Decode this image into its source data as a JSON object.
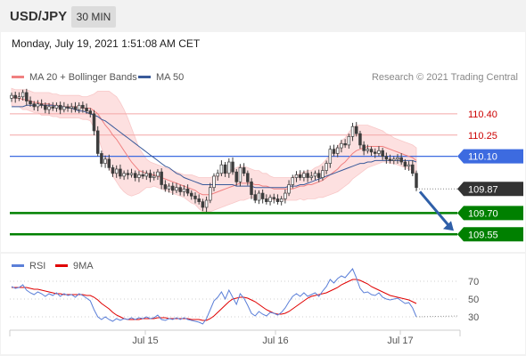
{
  "header": {
    "symbol": "USD/JPY",
    "interval": "30 MIN"
  },
  "timestamp": "Monday, July 19, 2021 1:51:08 AM CET",
  "legend": {
    "ma20": "MA 20 + Bollinger Bands",
    "ma50": "MA 50",
    "rsi": "RSI",
    "rsi_ma": "9MA"
  },
  "copyright": "Research © 2021 Trading Central",
  "colors": {
    "up": "#3d3d3d",
    "down": "#3d3d3d",
    "ma20": "#f08080",
    "ma50": "#3a5a9a",
    "band": "#fde0e0",
    "resistance": "#f4a6a6",
    "pivot": "#3d6be0",
    "support": "#008000",
    "last": "#333333",
    "arrow": "#2f5fa8",
    "rsi": "#5b7fd8",
    "rsi_ma": "#e00000"
  },
  "chart_data": [
    {
      "type": "candlestick",
      "ylim": [
        109.47,
        110.6
      ],
      "x_ticks": [
        "Jul 15",
        "Jul 16",
        "Jul 17"
      ],
      "levels": [
        {
          "label": "110.40",
          "value": 110.4,
          "kind": "resistance"
        },
        {
          "label": "110.25",
          "value": 110.25,
          "kind": "resistance"
        },
        {
          "label": "110.10",
          "value": 110.1,
          "kind": "pivot"
        },
        {
          "label": "109.87",
          "value": 109.87,
          "kind": "last"
        },
        {
          "label": "109.70",
          "value": 109.7,
          "kind": "support"
        },
        {
          "label": "109.55",
          "value": 109.55,
          "kind": "support"
        }
      ],
      "closes": [
        110.53,
        110.51,
        110.52,
        110.55,
        110.49,
        110.47,
        110.45,
        110.47,
        110.46,
        110.43,
        110.45,
        110.44,
        110.46,
        110.43,
        110.45,
        110.44,
        110.45,
        110.43,
        110.46,
        110.44,
        110.42,
        110.4,
        110.28,
        110.12,
        110.05,
        110.08,
        110.02,
        109.98,
        110.01,
        109.96,
        109.98,
        109.97,
        109.98,
        109.95,
        109.97,
        109.96,
        109.98,
        109.95,
        109.96,
        109.99,
        109.9,
        109.87,
        109.89,
        109.86,
        109.88,
        109.85,
        109.87,
        109.84,
        109.82,
        109.8,
        109.78,
        109.74,
        109.79,
        109.88,
        109.96,
        109.98,
        110.04,
        109.98,
        110.06,
        109.99,
        109.92,
        110.02,
        109.98,
        109.92,
        109.83,
        109.79,
        109.84,
        109.8,
        109.78,
        109.81,
        109.8,
        109.78,
        109.8,
        109.84,
        109.9,
        109.95,
        109.97,
        109.95,
        109.98,
        109.95,
        109.96,
        109.98,
        109.95,
        110.0,
        110.05,
        110.15,
        110.12,
        110.16,
        110.19,
        110.18,
        110.24,
        110.31,
        110.26,
        110.18,
        110.14,
        110.15,
        110.13,
        110.12,
        110.14,
        110.1,
        110.08,
        110.07,
        110.08,
        110.09,
        110.06,
        110.03,
        110.04,
        109.98,
        109.88
      ],
      "ma20": [
        110.52,
        110.51,
        110.51,
        110.5,
        110.5,
        110.49,
        110.48,
        110.48,
        110.47,
        110.47,
        110.47,
        110.46,
        110.46,
        110.45,
        110.45,
        110.45,
        110.45,
        110.45,
        110.45,
        110.44,
        110.44,
        110.44,
        110.42,
        110.4,
        110.36,
        110.32,
        110.29,
        110.25,
        110.22,
        110.18,
        110.14,
        110.1,
        110.06,
        110.03,
        110.0,
        109.99,
        109.98,
        109.97,
        109.97,
        109.96,
        109.95,
        109.94,
        109.93,
        109.92,
        109.91,
        109.9,
        109.89,
        109.88,
        109.87,
        109.86,
        109.84,
        109.83,
        109.83,
        109.83,
        109.84,
        109.85,
        109.86,
        109.87,
        109.88,
        109.89,
        109.9,
        109.91,
        109.91,
        109.91,
        109.91,
        109.9,
        109.9,
        109.89,
        109.89,
        109.88,
        109.87,
        109.87,
        109.87,
        109.87,
        109.87,
        109.87,
        109.88,
        109.89,
        109.89,
        109.9,
        109.9,
        109.91,
        109.92,
        109.93,
        109.95,
        109.97,
        109.99,
        110.01,
        110.04,
        110.06,
        110.09,
        110.12,
        110.14,
        110.15,
        110.16,
        110.17,
        110.17,
        110.17,
        110.17,
        110.17,
        110.16,
        110.15,
        110.14,
        110.13,
        110.12,
        110.11,
        110.1,
        110.09,
        110.07
      ],
      "ma50": [
        110.45,
        110.45,
        110.45,
        110.45,
        110.46,
        110.46,
        110.46,
        110.46,
        110.46,
        110.46,
        110.46,
        110.46,
        110.45,
        110.45,
        110.45,
        110.44,
        110.44,
        110.43,
        110.42,
        110.42,
        110.41,
        110.4,
        110.39,
        110.38,
        110.36,
        110.35,
        110.33,
        110.31,
        110.29,
        110.27,
        110.25,
        110.23,
        110.21,
        110.19,
        110.17,
        110.15,
        110.13,
        110.11,
        110.09,
        110.07,
        110.05,
        110.03,
        110.02,
        110.0,
        109.98,
        109.97,
        109.95,
        109.94,
        109.93,
        109.92,
        109.91,
        109.9,
        109.9,
        109.9,
        109.9,
        109.9,
        109.9,
        109.9,
        109.9,
        109.9,
        109.89,
        109.89,
        109.89,
        109.89,
        109.89,
        109.88,
        109.88,
        109.88,
        109.88,
        109.88,
        109.88,
        109.88,
        109.88,
        109.88,
        109.89,
        109.89,
        109.89,
        109.9,
        109.9,
        109.91,
        109.92,
        109.93,
        109.94,
        109.95,
        109.96,
        109.97,
        109.98,
        109.99,
        110.0,
        110.01,
        110.02,
        110.03,
        110.04,
        110.05,
        110.05,
        110.06,
        110.06,
        110.07,
        110.07,
        110.07,
        110.07,
        110.07,
        110.07,
        110.07,
        110.07,
        110.07,
        110.07,
        110.07,
        110.06
      ],
      "band_width": [
        0.06,
        0.06,
        0.06,
        0.07,
        0.07,
        0.07,
        0.07,
        0.07,
        0.08,
        0.08,
        0.08,
        0.08,
        0.08,
        0.08,
        0.08,
        0.08,
        0.08,
        0.08,
        0.08,
        0.08,
        0.08,
        0.09,
        0.12,
        0.16,
        0.2,
        0.24,
        0.27,
        0.29,
        0.3,
        0.3,
        0.29,
        0.27,
        0.24,
        0.2,
        0.16,
        0.13,
        0.1,
        0.09,
        0.08,
        0.08,
        0.08,
        0.08,
        0.08,
        0.08,
        0.08,
        0.08,
        0.08,
        0.09,
        0.1,
        0.1,
        0.11,
        0.12,
        0.12,
        0.12,
        0.12,
        0.12,
        0.12,
        0.12,
        0.12,
        0.12,
        0.12,
        0.12,
        0.12,
        0.11,
        0.1,
        0.1,
        0.1,
        0.09,
        0.09,
        0.08,
        0.08,
        0.08,
        0.08,
        0.08,
        0.08,
        0.08,
        0.09,
        0.09,
        0.1,
        0.1,
        0.1,
        0.11,
        0.11,
        0.12,
        0.13,
        0.14,
        0.15,
        0.16,
        0.17,
        0.17,
        0.18,
        0.18,
        0.18,
        0.17,
        0.16,
        0.15,
        0.14,
        0.13,
        0.12,
        0.11,
        0.1,
        0.1,
        0.09,
        0.09,
        0.09,
        0.09,
        0.09,
        0.09,
        0.09
      ],
      "projection": {
        "from": 109.87,
        "to": 109.55
      }
    },
    {
      "type": "line",
      "ylim": [
        20,
        80
      ],
      "y_ticks": [
        70,
        50,
        30
      ],
      "rsi": [
        64,
        62,
        63,
        66,
        60,
        57,
        55,
        58,
        56,
        53,
        56,
        54,
        57,
        53,
        56,
        54,
        55,
        52,
        56,
        54,
        51,
        48,
        38,
        30,
        27,
        30,
        27,
        25,
        28,
        26,
        28,
        27,
        29,
        27,
        29,
        28,
        30,
        28,
        29,
        32,
        27,
        26,
        28,
        27,
        29,
        27,
        29,
        27,
        26,
        25,
        24,
        22,
        28,
        38,
        48,
        52,
        58,
        50,
        60,
        52,
        44,
        56,
        51,
        43,
        34,
        31,
        36,
        33,
        31,
        35,
        34,
        32,
        35,
        40,
        47,
        53,
        56,
        53,
        57,
        53,
        55,
        57,
        53,
        59,
        64,
        72,
        68,
        73,
        76,
        74,
        79,
        84,
        74,
        62,
        57,
        58,
        55,
        54,
        57,
        52,
        50,
        49,
        50,
        51,
        48,
        45,
        46,
        40,
        30
      ],
      "rsi_ma": [
        63,
        63,
        63,
        63,
        63,
        62,
        61,
        61,
        60,
        59,
        58,
        57,
        56,
        56,
        55,
        55,
        55,
        55,
        55,
        55,
        54,
        54,
        52,
        49,
        45,
        42,
        39,
        35,
        32,
        30,
        28,
        27,
        27,
        27,
        27,
        28,
        28,
        28,
        28,
        29,
        29,
        29,
        28,
        28,
        28,
        28,
        28,
        28,
        27,
        27,
        27,
        26,
        26,
        28,
        31,
        35,
        39,
        43,
        47,
        50,
        51,
        52,
        52,
        51,
        49,
        47,
        44,
        41,
        38,
        36,
        34,
        33,
        33,
        34,
        36,
        39,
        42,
        45,
        48,
        51,
        53,
        54,
        55,
        56,
        57,
        59,
        61,
        63,
        66,
        68,
        70,
        72,
        72,
        71,
        69,
        67,
        64,
        62,
        60,
        58,
        56,
        54,
        53,
        52,
        51,
        50,
        49,
        47,
        45
      ]
    }
  ]
}
